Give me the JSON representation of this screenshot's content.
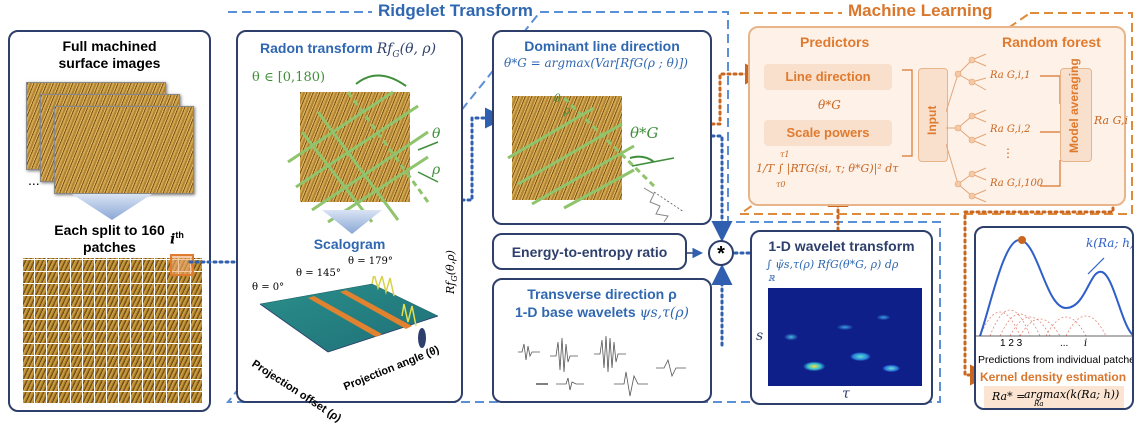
{
  "sections": {
    "ridgelet_title": "Ridgelet Transform",
    "ml_title": "Machine Learning"
  },
  "left": {
    "title_line1": "Full machined",
    "title_line2": "surface images",
    "ellipsis": "...",
    "split_line1": "Each split to 160",
    "split_line2": "patches",
    "ith": "i",
    "ith_sup": "th"
  },
  "radon": {
    "title": "Radon transform",
    "formula": "Rf",
    "formula_sub": "G",
    "formula_args": "(θ, ρ)",
    "theta_range": "θ ∈ [0,180)",
    "theta": "θ",
    "rho": "ρ"
  },
  "scalogram": {
    "title": "Scalogram",
    "angle_179": "θ = 179°",
    "angle_145": "θ = 145°",
    "angle_0": "θ = 0°",
    "zlabel": "Rf",
    "zlabel_sub": "G",
    "zlabel_args": "(θ,ρ)",
    "xlabel": "Projection offset (ρ)",
    "ylabel": "Projection angle (θ)"
  },
  "dominant": {
    "title": "Dominant line direction",
    "formula": "θ*G = argmax(Var[RfG(ρ ; θ)])",
    "theta": "θ",
    "rho": "ρ",
    "theta_star": "θ*G"
  },
  "energy": {
    "label": "Energy-to-entropy ratio"
  },
  "transverse": {
    "line1": "Transverse direction ρ",
    "line2_text": "1-D base wavelets ",
    "line2_math": "ψs,τ(ρ)"
  },
  "operator": "*",
  "wavelet": {
    "title": "1-D wavelet transform",
    "formula": "∫ ψ̄s,τ(ρ) RfG(θ*G, ρ) dρ",
    "integral_sub": "ℝ",
    "ylabel": "s",
    "xlabel": "τ"
  },
  "predictors": {
    "title": "Predictors",
    "line_direction": "Line direction",
    "theta_star": "θ*G",
    "scale_powers": "Scale powers",
    "formula": "1/T ∫ |RTG(si, τ; θ*G)|² dτ",
    "tau0": "τ0",
    "tau1": "τ1"
  },
  "forest": {
    "title": "Random forest",
    "input": "Input",
    "out1": "Ra G,i,1",
    "out2": "Ra G,i,2",
    "out100": "Ra G,i,100",
    "dots": "⋮",
    "averaging": "Model averaging",
    "result": "Ra G,i"
  },
  "kde": {
    "curve_label": "k(Ra; h)",
    "ticks": "1 2 3",
    "dots": "...",
    "tick_i": "i",
    "predictions": "Predictions from individual patches",
    "title": "Kernel density estimation",
    "formula_lhs": "Ra* = ",
    "formula_rhs": "argmax(k(Ra; h))",
    "formula_sub": "Ra"
  },
  "colors": {
    "navy": "#2e3f6b",
    "blue": "#2f67b1",
    "orange": "#d8772d",
    "green": "#8fc46c",
    "dashed_blue": "#5b8fd6",
    "dashed_orange": "#e08a3c"
  }
}
